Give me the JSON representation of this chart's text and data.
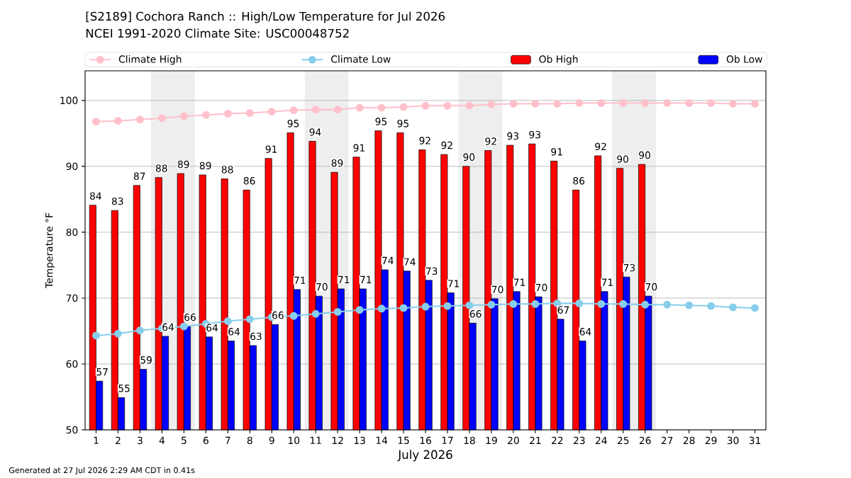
{
  "chart_data": {
    "type": "bar",
    "title": "[S2189] Cochora Ranch :: High/Low Temperature for Jul 2026",
    "subtitle": "NCEI 1991-2020 Climate Site: USC00048752",
    "xlabel": "July 2026",
    "ylabel": "Temperature °F",
    "x": [
      1,
      2,
      3,
      4,
      5,
      6,
      7,
      8,
      9,
      10,
      11,
      12,
      13,
      14,
      15,
      16,
      17,
      18,
      19,
      20,
      21,
      22,
      23,
      24,
      25,
      26,
      27,
      28,
      29,
      30,
      31
    ],
    "xlim": [
      0.5,
      31.5
    ],
    "xticks": [
      1,
      2,
      3,
      4,
      5,
      6,
      7,
      8,
      9,
      10,
      11,
      12,
      13,
      14,
      15,
      16,
      17,
      18,
      19,
      20,
      21,
      22,
      23,
      24,
      25,
      26,
      27,
      28,
      29,
      30,
      31
    ],
    "ylim": [
      50,
      104.5
    ],
    "yticks": [
      50,
      60,
      70,
      80,
      90,
      100
    ],
    "grid": "y",
    "legend": "top",
    "marker": "circle",
    "series": [
      {
        "name": "Climate High",
        "type": "line",
        "color": "#ffc0cb",
        "values": [
          96.8,
          96.9,
          97.1,
          97.3,
          97.6,
          97.8,
          98.0,
          98.1,
          98.3,
          98.5,
          98.6,
          98.6,
          98.9,
          98.9,
          99.0,
          99.2,
          99.2,
          99.2,
          99.4,
          99.5,
          99.5,
          99.5,
          99.6,
          99.6,
          99.6,
          99.6,
          99.6,
          99.6,
          99.6,
          99.5,
          99.5
        ]
      },
      {
        "name": "Climate Low",
        "type": "line",
        "color": "#87ceeb",
        "values": [
          64.3,
          64.6,
          65.1,
          65.4,
          65.7,
          66.1,
          66.5,
          66.8,
          67.1,
          67.3,
          67.6,
          67.9,
          68.2,
          68.4,
          68.5,
          68.7,
          68.8,
          68.9,
          69.0,
          69.1,
          69.1,
          69.2,
          69.2,
          69.1,
          69.1,
          69.0,
          69.0,
          68.9,
          68.8,
          68.6,
          68.5
        ]
      },
      {
        "name": "Ob High",
        "color": "#ff0000",
        "values": [
          84.1,
          83.3,
          87.1,
          88.3,
          88.9,
          88.7,
          88.1,
          86.4,
          91.2,
          95.1,
          93.8,
          89.1,
          91.4,
          95.4,
          95.1,
          92.5,
          91.8,
          90.0,
          92.4,
          93.2,
          93.4,
          90.8,
          86.4,
          91.6,
          89.7,
          90.3,
          null,
          null,
          null,
          null,
          null
        ],
        "value_labels": [
          "84",
          "83",
          "87",
          "88",
          "89",
          "89",
          "88",
          "86",
          "91",
          "95",
          "94",
          "89",
          "91",
          "95",
          "95",
          "92",
          "92",
          "90",
          "92",
          "93",
          "93",
          "91",
          "86",
          "92",
          "90",
          "90",
          null,
          null,
          null,
          null,
          null
        ]
      },
      {
        "name": "Ob Low",
        "color": "#0000ff",
        "values": [
          57.4,
          54.9,
          59.2,
          64.2,
          65.7,
          64.1,
          63.5,
          62.8,
          66.0,
          71.3,
          70.3,
          71.4,
          71.4,
          74.3,
          74.1,
          72.7,
          70.8,
          66.2,
          69.9,
          71.0,
          70.2,
          66.8,
          63.5,
          71.0,
          73.2,
          70.3,
          null,
          null,
          null,
          null,
          null
        ],
        "value_labels": [
          "57",
          "55",
          "59",
          "64",
          "66",
          "64",
          "64",
          "63",
          "66",
          "71",
          "70",
          "71",
          "71",
          "74",
          "74",
          "73",
          "71",
          "66",
          "70",
          "71",
          "70",
          "67",
          "64",
          "71",
          "73",
          "70",
          null,
          null,
          null,
          null,
          null
        ]
      }
    ],
    "bands": [
      {
        "axis": "x",
        "from": 3.5,
        "to": 5.5,
        "color": "#eeeeee"
      },
      {
        "axis": "x",
        "from": 10.5,
        "to": 12.5,
        "color": "#eeeeee"
      },
      {
        "axis": "x",
        "from": 17.5,
        "to": 19.5,
        "color": "#eeeeee"
      },
      {
        "axis": "x",
        "from": 24.5,
        "to": 26.5,
        "color": "#eeeeee"
      }
    ],
    "annotations": [
      "Generated at 27 Jul 2026 2:29 AM CDT in 0.41s"
    ]
  }
}
